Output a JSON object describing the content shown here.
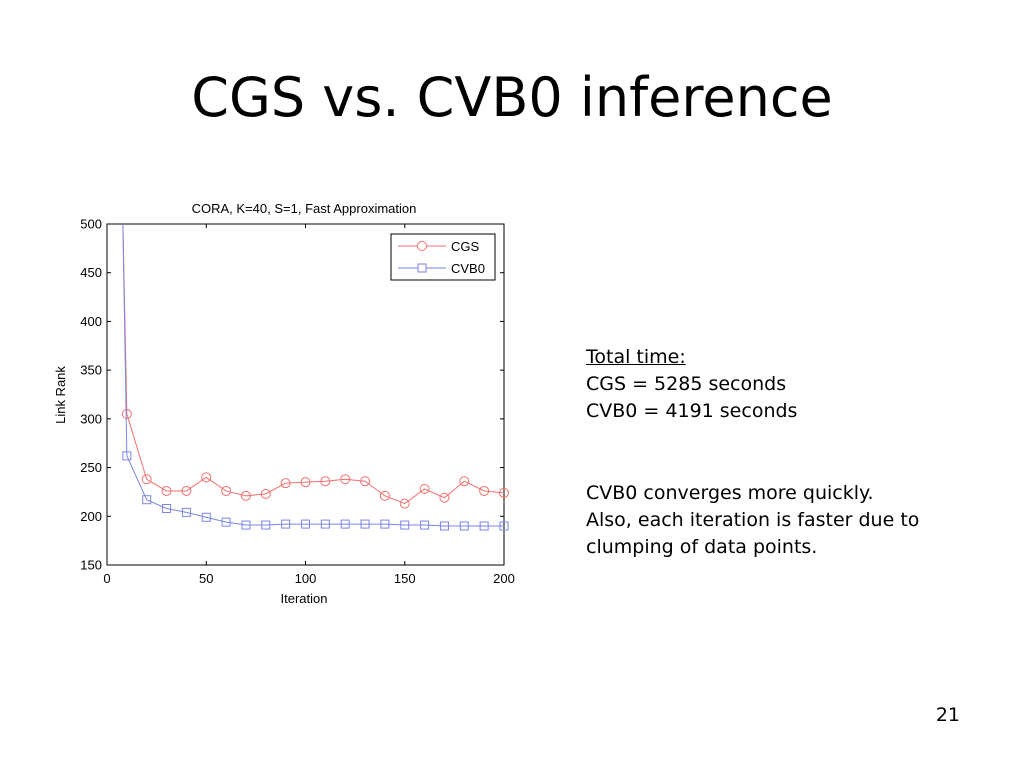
{
  "slide": {
    "title": "CGS vs. CVB0 inference",
    "page_number": "21"
  },
  "notes": {
    "total_heading": "Total time:",
    "cgs_time": "CGS = 5285 seconds",
    "cvb0_time": "CVB0 = 4191 seconds",
    "line1": "CVB0 converges more quickly.",
    "line2": "Also, each iteration is faster due to",
    "line3": "clumping of data points."
  },
  "chart_data": {
    "type": "line",
    "title": "CORA, K=40, S=1, Fast Approximation",
    "xlabel": "Iteration",
    "ylabel": "Link Rank",
    "xlim": [
      0,
      200
    ],
    "ylim": [
      150,
      500
    ],
    "xticks": [
      0,
      50,
      100,
      150,
      200
    ],
    "yticks": [
      150,
      200,
      250,
      300,
      350,
      400,
      450,
      500
    ],
    "grid": false,
    "legend_position": "top-right",
    "x": [
      10,
      20,
      30,
      40,
      50,
      60,
      70,
      80,
      90,
      100,
      110,
      120,
      130,
      140,
      150,
      160,
      170,
      180,
      190,
      200
    ],
    "series": [
      {
        "name": "CGS",
        "color": "#f07070",
        "marker": "circle",
        "start": [
          8,
          500
        ],
        "values": [
          305,
          238,
          226,
          226,
          240,
          226,
          221,
          223,
          234,
          235,
          236,
          238,
          236,
          221,
          213,
          228,
          219,
          236,
          226,
          224
        ]
      },
      {
        "name": "CVB0",
        "color": "#7b86e6",
        "marker": "square",
        "start": [
          8,
          500
        ],
        "values": [
          262,
          217,
          208,
          204,
          199,
          194,
          191,
          191,
          192,
          192,
          192,
          192,
          192,
          192,
          191,
          191,
          190,
          190,
          190,
          190
        ]
      }
    ]
  }
}
